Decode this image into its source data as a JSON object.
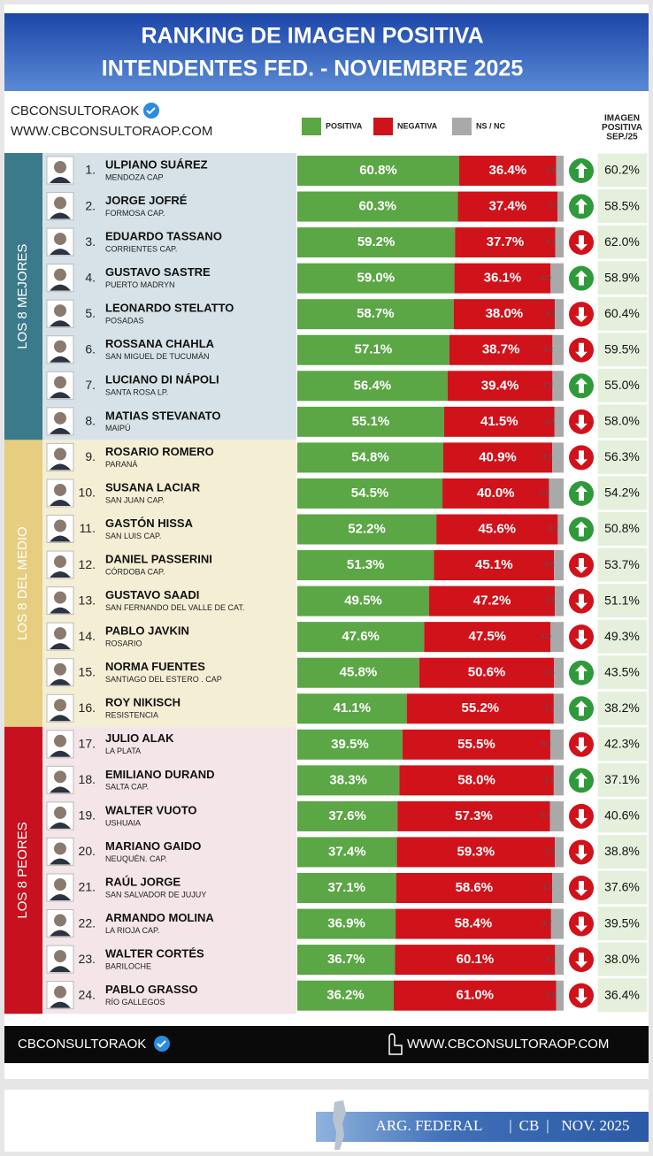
{
  "chart_data": {
    "type": "stacked-bar",
    "title": [
      "RANKING DE IMAGEN POSITIVA",
      "INTENDENTES FED. - NOVIEMBRE 2025"
    ],
    "brand": "CBCONSULTORAOK",
    "website": "WWW.CBCONSULTORAOP.COM",
    "footer": {
      "brand": "CBCONSULTORAOK",
      "website": "WWW.CBCONSULTORAOP.COM"
    },
    "banner": [
      "ARG. FEDERAL",
      "CB",
      "NOV. 2025"
    ],
    "ranks": [
      "1.",
      "2.",
      "3.",
      "4.",
      "5.",
      "6.",
      "7.",
      "8.",
      "9.",
      "10.",
      "11.",
      "12.",
      "13.",
      "14.",
      "15.",
      "16.",
      "17.",
      "18.",
      "19.",
      "20.",
      "21.",
      "22.",
      "23.",
      "24."
    ],
    "categories": [
      "ULPIANO SUÁREZ",
      "JORGE JOFRÉ",
      "EDUARDO TASSANO",
      "GUSTAVO SASTRE",
      "LEONARDO STELATTO",
      "ROSSANA CHAHLA",
      "LUCIANO DI NÁPOLI",
      "MATIAS STEVANATO",
      "ROSARIO ROMERO",
      "SUSANA LACIAR",
      "GASTÓN HISSA",
      "DANIEL PASSERINI",
      "GUSTAVO SAADI",
      "PABLO JAVKIN",
      "NORMA FUENTES",
      "ROY NIKISCH",
      "JULIO ALAK",
      "EMILIANO DURAND",
      "WALTER VUOTO",
      "MARIANO GAIDO",
      "RAÚL JORGE",
      "ARMANDO MOLINA",
      "WALTER CORTÉS",
      "PABLO GRASSO"
    ],
    "places": [
      "MENDOZA CAP",
      "FORMOSA CAP.",
      "CORRIENTES CAP.",
      "PUERTO MADRYN",
      "POSADAS",
      "SAN MIGUEL DE TUCUMÁN",
      "SANTA ROSA LP.",
      "MAIPÚ",
      "PARANÁ",
      "SAN JUAN CAP.",
      "SAN LUIS CAP.",
      "CÓRDOBA CAP.",
      "SAN FERNANDO DEL VALLE DE CAT.",
      "ROSARIO",
      "SANTIAGO DEL ESTERO . CAP",
      "RESISTENCIA",
      "LA PLATA",
      "SALTA CAP.",
      "USHUAIA",
      "NEUQUÉN. CAP.",
      "SAN SALVADOR DE JUJUY",
      "LA RIOJA CAP.",
      "BARILOCHE",
      "RÍO GALLEGOS"
    ],
    "groups": [
      {
        "name": "LOS 8 MEJORES",
        "color": "#3b7a8a",
        "background": "#d6e2e7"
      },
      {
        "name": "LOS 8 DEL MEDIO",
        "color": "#e6cd80",
        "background": "#f4eed5"
      },
      {
        "name": "LOS 8 PEORES",
        "color": "#c8111e",
        "background": "#f3e5e8"
      }
    ],
    "xlim": [
      0,
      100
    ],
    "series": [
      {
        "name": "POSITIVA",
        "color": "#5ba645",
        "values": [
          60.8,
          60.3,
          59.2,
          59.0,
          58.7,
          57.1,
          56.4,
          55.1,
          54.8,
          54.5,
          52.2,
          51.3,
          49.5,
          47.6,
          45.8,
          41.1,
          39.5,
          38.3,
          37.6,
          37.4,
          37.1,
          36.9,
          36.7,
          36.2
        ],
        "value_labels": [
          "60.8%",
          "60.3%",
          "59.2%",
          "59.0%",
          "58.7%",
          "57.1%",
          "56.4%",
          "55.1%",
          "54.8%",
          "54.5%",
          "52.2%",
          "51.3%",
          "49.5%",
          "47.6%",
          "45.8%",
          "41.1%",
          "39.5%",
          "38.3%",
          "37.6%",
          "37.4%",
          "37.1%",
          "36.9%",
          "36.7%",
          "36.2%"
        ]
      },
      {
        "name": "NEGATIVA",
        "color": "#d0121b",
        "values": [
          36.4,
          37.4,
          37.7,
          36.1,
          38.0,
          38.7,
          39.4,
          41.5,
          40.9,
          40.0,
          45.6,
          45.1,
          47.2,
          47.5,
          50.6,
          55.2,
          55.5,
          58.0,
          57.3,
          59.3,
          58.6,
          58.4,
          60.1,
          61.0
        ],
        "value_labels": [
          "36.4%",
          "37.4%",
          "37.7%",
          "36.1%",
          "38.0%",
          "38.7%",
          "39.4%",
          "41.5%",
          "40.9%",
          "40.0%",
          "45.6%",
          "45.1%",
          "47.2%",
          "47.5%",
          "50.6%",
          "55.2%",
          "55.5%",
          "58.0%",
          "57.3%",
          "59.3%",
          "58.6%",
          "58.4%",
          "60.1%",
          "61.0%"
        ]
      },
      {
        "name": "NS / NC",
        "color": "#a9a9a9",
        "values": [
          2.8,
          2.3,
          3.1,
          4.9,
          3.3,
          4.2,
          4.2,
          3.4,
          4.3,
          5.5,
          2.2,
          3.6,
          3.3,
          4.9,
          3.6,
          3.7,
          5.0,
          3.7,
          5.1,
          3.3,
          4.3,
          4.7,
          3.2,
          2.8
        ],
        "value_labels": [
          "2.8",
          "2.3",
          "3.1",
          "4.9",
          "3.3",
          "4.2",
          "4.2",
          "3.4",
          "4.3",
          "5.5",
          "2.2",
          "3.6",
          "3.3",
          "4.9",
          "3.6",
          "3.7",
          "5.0",
          "3.7",
          "5.1",
          "3.3",
          "4.3",
          "4.7",
          "3.2",
          "2.8"
        ]
      }
    ],
    "previous": {
      "title": [
        "IMAGEN",
        "POSITIVA",
        "SEP./25"
      ],
      "background": "#e4f0dc",
      "values": [
        60.2,
        58.5,
        62.0,
        58.9,
        60.4,
        59.5,
        55.0,
        58.0,
        56.3,
        54.2,
        50.8,
        53.7,
        51.1,
        49.3,
        43.5,
        38.2,
        42.3,
        37.1,
        40.6,
        38.8,
        37.6,
        39.5,
        38.0,
        36.4
      ],
      "value_labels": [
        "60.2%",
        "58.5%",
        "62.0%",
        "58.9%",
        "60.4%",
        "59.5%",
        "55.0%",
        "58.0%",
        "56.3%",
        "54.2%",
        "50.8%",
        "53.7%",
        "51.1%",
        "49.3%",
        "43.5%",
        "38.2%",
        "42.3%",
        "37.1%",
        "40.6%",
        "38.8%",
        "37.6%",
        "39.5%",
        "38.0%",
        "36.4%"
      ]
    },
    "trend_colors": {
      "up": "#2f9a3a",
      "down": "#d0121b"
    }
  }
}
